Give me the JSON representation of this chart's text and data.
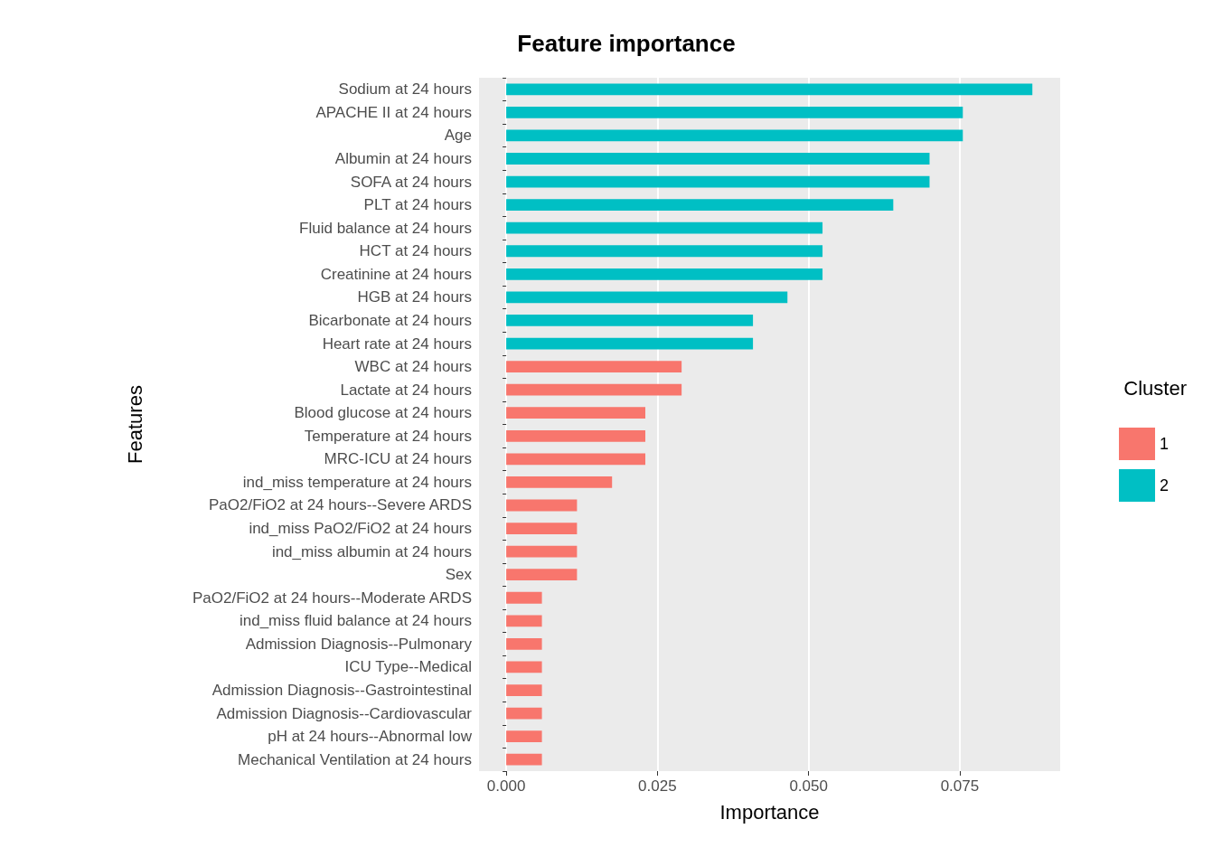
{
  "chart_data": {
    "type": "bar",
    "orientation": "horizontal",
    "title": "Feature importance",
    "xlabel": "Importance",
    "ylabel": "Features",
    "legend_title": "Cluster",
    "legend": "right",
    "grid": true,
    "categories": [
      "Sodium at 24 hours",
      "APACHE II at 24 hours",
      "Age",
      "Albumin at 24 hours",
      "SOFA at 24 hours",
      "PLT at 24 hours",
      "Fluid balance at 24 hours",
      "HCT at 24 hours",
      "Creatinine at 24 hours",
      "HGB at 24 hours",
      "Bicarbonate at 24 hours",
      "Heart rate at 24 hours",
      "WBC at 24 hours",
      "Lactate at 24 hours",
      "Blood glucose at 24 hours",
      "Temperature at 24 hours",
      "MRC-ICU at 24 hours",
      "ind_miss temperature at 24 hours",
      "PaO2/FiO2 at 24 hours--Severe ARDS",
      "ind_miss PaO2/FiO2 at 24 hours",
      "ind_miss albumin at 24 hours",
      "Sex",
      "PaO2/FiO2 at 24 hours--Moderate ARDS",
      "ind_miss fluid balance at 24 hours",
      "Admission Diagnosis--Pulmonary",
      "ICU Type--Medical",
      "Admission Diagnosis--Gastrointestinal",
      "Admission Diagnosis--Cardiovascular",
      "pH at 24 hours--Abnormal low",
      "Mechanical Ventilation at 24 hours"
    ],
    "series": [
      {
        "name": "1",
        "color": "#f8766d",
        "values": [
          null,
          null,
          null,
          null,
          null,
          null,
          null,
          null,
          null,
          null,
          null,
          null,
          0.029,
          0.029,
          0.023,
          0.023,
          0.023,
          0.0175,
          0.0117,
          0.0117,
          0.0117,
          0.0117,
          0.0059,
          0.0059,
          0.0059,
          0.0059,
          0.0059,
          0.0059,
          0.0059,
          0.0059
        ]
      },
      {
        "name": "2",
        "color": "#00bfc4",
        "values": [
          0.087,
          0.0755,
          0.0755,
          0.07,
          0.07,
          0.064,
          0.0523,
          0.0523,
          0.0523,
          0.0465,
          0.0408,
          0.0408,
          null,
          null,
          null,
          null,
          null,
          null,
          null,
          null,
          null,
          null,
          null,
          null,
          null,
          null,
          null,
          null,
          null,
          null
        ]
      }
    ],
    "xlim": [
      -0.0045,
      0.0916
    ],
    "xticks": [
      {
        "value": 0,
        "label": "0.000"
      },
      {
        "value": 0.025,
        "label": "0.025"
      },
      {
        "value": 0.05,
        "label": "0.050"
      },
      {
        "value": 0.075,
        "label": "0.075"
      }
    ]
  }
}
